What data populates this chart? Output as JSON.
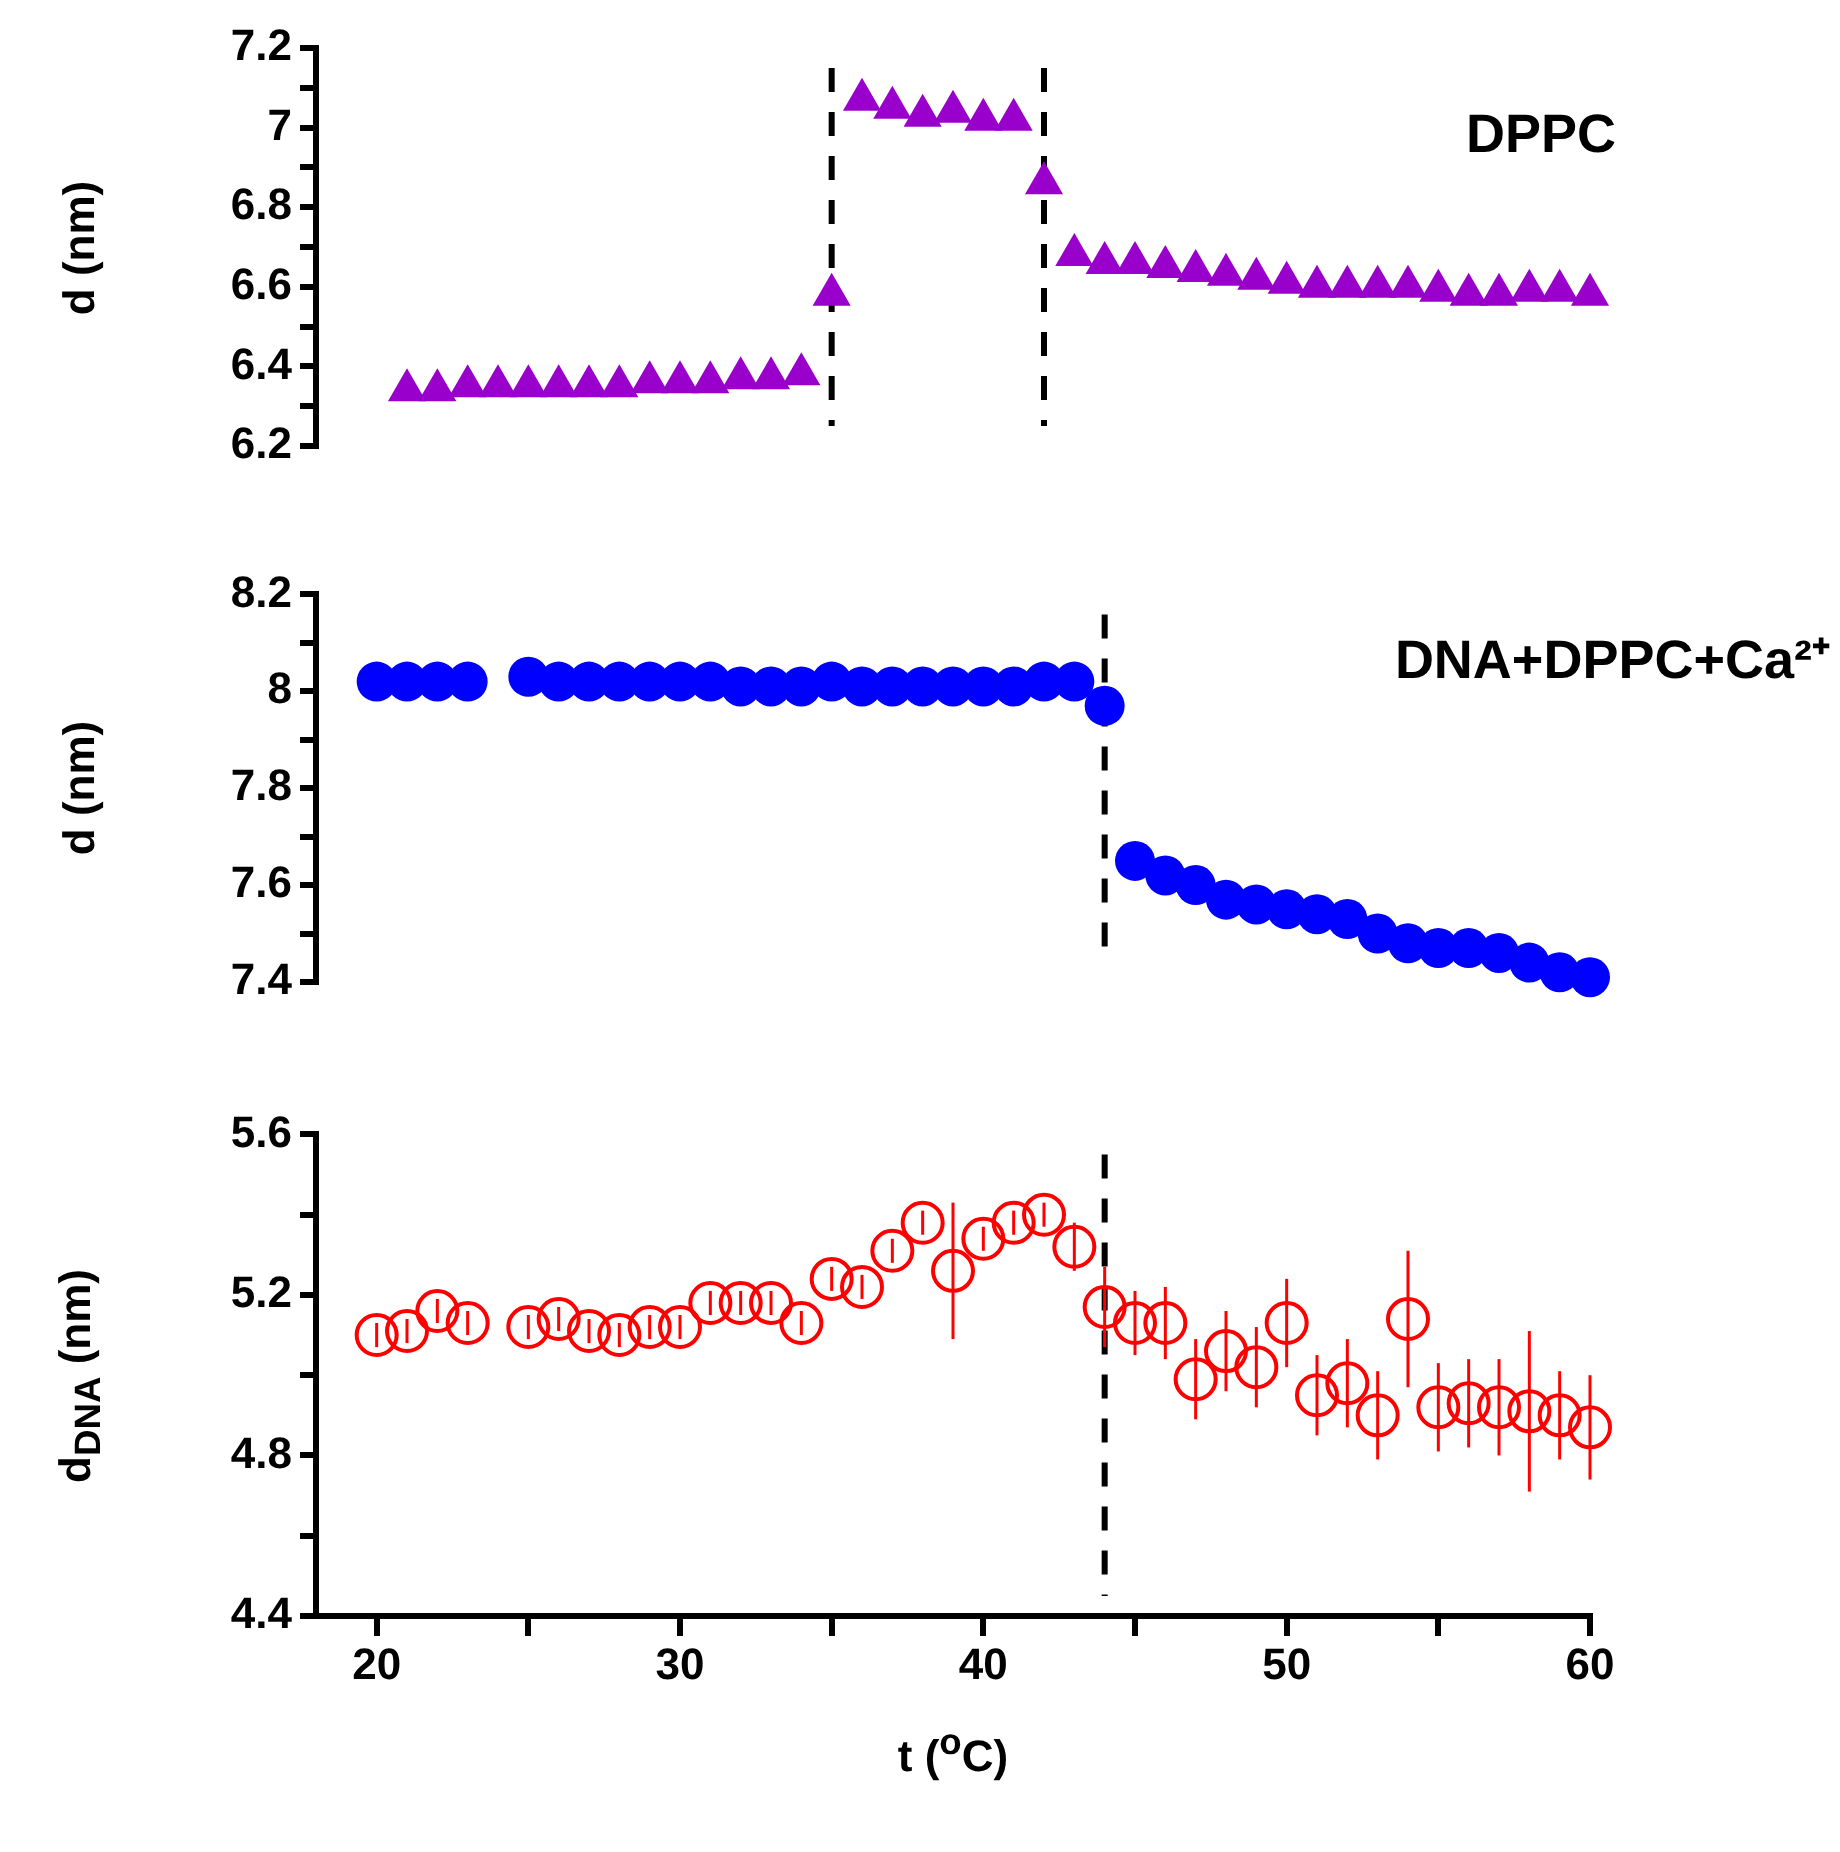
{
  "chart_data": [
    {
      "type": "scatter",
      "ylabel": "d (nm)",
      "annotations": [
        "DPPC"
      ],
      "xlim": [
        18,
        60
      ],
      "ylim": [
        6.2,
        7.2
      ],
      "yticks": [
        6.2,
        {
          "value": 6.3,
          "label": null
        },
        6.4,
        {
          "value": 6.5,
          "label": null
        },
        6.6,
        {
          "value": 6.7,
          "label": null
        },
        6.8,
        {
          "value": 6.9,
          "label": null
        },
        7,
        {
          "value": 7.1,
          "label": null
        },
        7.2
      ],
      "tick_labels": "y",
      "marker": "triangle",
      "ref_lines": [
        {
          "axis": "x",
          "value": 35,
          "line_style": "dashed",
          "color": "#000000"
        },
        {
          "axis": "x",
          "value": 42,
          "line_style": "dashed",
          "color": "#000000"
        }
      ],
      "series": [
        {
          "color": "#9900cc",
          "x": [
            21,
            22,
            23,
            24,
            25,
            26,
            27,
            28,
            29,
            30,
            31,
            32,
            33,
            34,
            35,
            36,
            37,
            38,
            39,
            40,
            41,
            42,
            43,
            44,
            45,
            46,
            47,
            48,
            49,
            50,
            51,
            52,
            53,
            54,
            55,
            56,
            57,
            58,
            59,
            60
          ],
          "values": [
            6.34,
            6.34,
            6.35,
            6.35,
            6.35,
            6.35,
            6.35,
            6.35,
            6.36,
            6.36,
            6.36,
            6.37,
            6.37,
            6.38,
            6.58,
            7.07,
            7.05,
            7.03,
            7.04,
            7.02,
            7.02,
            6.86,
            6.68,
            6.66,
            6.66,
            6.65,
            6.64,
            6.63,
            6.62,
            6.61,
            6.6,
            6.6,
            6.6,
            6.6,
            6.59,
            6.58,
            6.58,
            6.59,
            6.59,
            6.58
          ]
        }
      ]
    },
    {
      "type": "scatter",
      "ylabel": "d (nm)",
      "annotations": [
        "DNA+DPPC+Ca²⁺"
      ],
      "xlim": [
        18,
        60
      ],
      "ylim": [
        7.4,
        8.2
      ],
      "yticks": [
        7.4,
        {
          "value": 7.5,
          "label": null
        },
        7.6,
        {
          "value": 7.7,
          "label": null
        },
        7.8,
        {
          "value": 7.9,
          "label": null
        },
        8,
        {
          "value": 8.1,
          "label": null
        },
        8.2
      ],
      "tick_labels": "y",
      "marker": "circle",
      "ref_lines": [
        {
          "axis": "x",
          "value": 44,
          "line_style": "dashed",
          "color": "#000000"
        }
      ],
      "series": [
        {
          "color": "#0000ff",
          "x": [
            20,
            21,
            22,
            23,
            25,
            26,
            27,
            28,
            29,
            30,
            31,
            32,
            33,
            34,
            35,
            36,
            37,
            38,
            39,
            40,
            41,
            42,
            43,
            44,
            45,
            46,
            47,
            48,
            49,
            50,
            51,
            52,
            53,
            54,
            55,
            56,
            57,
            58,
            59,
            60
          ],
          "values": [
            8.02,
            8.02,
            8.02,
            8.02,
            8.03,
            8.02,
            8.02,
            8.02,
            8.02,
            8.02,
            8.02,
            8.01,
            8.01,
            8.01,
            8.02,
            8.01,
            8.01,
            8.01,
            8.01,
            8.01,
            8.01,
            8.02,
            8.02,
            7.97,
            7.65,
            7.62,
            7.6,
            7.57,
            7.56,
            7.55,
            7.54,
            7.53,
            7.5,
            7.48,
            7.47,
            7.47,
            7.46,
            7.44,
            7.42,
            7.41
          ]
        }
      ]
    },
    {
      "type": "scatter",
      "ylabel": "d$_{DNA}$ (nm)",
      "xlabel": "t ($^{o}$C)",
      "xlim": [
        18,
        60
      ],
      "xticks": [
        20,
        {
          "value": 25,
          "label": null
        },
        30,
        {
          "value": 35,
          "label": null
        },
        40,
        {
          "value": 45,
          "label": null
        },
        50,
        {
          "value": 55,
          "label": null
        },
        60
      ],
      "ylim": [
        4.4,
        5.6
      ],
      "yticks": [
        4.4,
        {
          "value": 4.6,
          "label": null
        },
        4.8,
        {
          "value": 5.0,
          "label": null
        },
        5.2,
        {
          "value": 5.4,
          "label": null
        },
        5.6
      ],
      "marker": "circle",
      "ref_lines": [
        {
          "axis": "x",
          "value": 44,
          "line_style": "dashed",
          "color": "#000000"
        }
      ],
      "series": [
        {
          "color": "#ff0000",
          "x": [
            20,
            21,
            22,
            23,
            25,
            26,
            27,
            28,
            29,
            30,
            31,
            32,
            33,
            34,
            35,
            36,
            37,
            38,
            39,
            40,
            41,
            42,
            43,
            44,
            45,
            46,
            47,
            48,
            49,
            50,
            51,
            52,
            53,
            54,
            55,
            56,
            57,
            58,
            59,
            60
          ],
          "values": [
            5.1,
            5.11,
            5.16,
            5.13,
            5.12,
            5.14,
            5.11,
            5.1,
            5.12,
            5.12,
            5.18,
            5.18,
            5.18,
            5.13,
            5.24,
            5.22,
            5.31,
            5.38,
            5.26,
            5.34,
            5.38,
            5.4,
            5.32,
            5.17,
            5.13,
            5.13,
            4.99,
            5.06,
            5.02,
            5.13,
            4.95,
            4.98,
            4.9,
            5.14,
            4.92,
            4.93,
            4.92,
            4.91,
            4.9,
            4.87
          ],
          "errors": [
            0.03,
            0.03,
            0.03,
            0.03,
            0.03,
            0.03,
            0.03,
            0.03,
            0.03,
            0.03,
            0.03,
            0.03,
            0.03,
            0.03,
            0.03,
            0.03,
            0.03,
            0.03,
            0.17,
            0.03,
            0.03,
            0.03,
            0.06,
            0.1,
            0.08,
            0.09,
            0.1,
            0.1,
            0.1,
            0.11,
            0.1,
            0.11,
            0.11,
            0.17,
            0.11,
            0.11,
            0.12,
            0.2,
            0.11,
            0.13
          ]
        }
      ]
    }
  ]
}
